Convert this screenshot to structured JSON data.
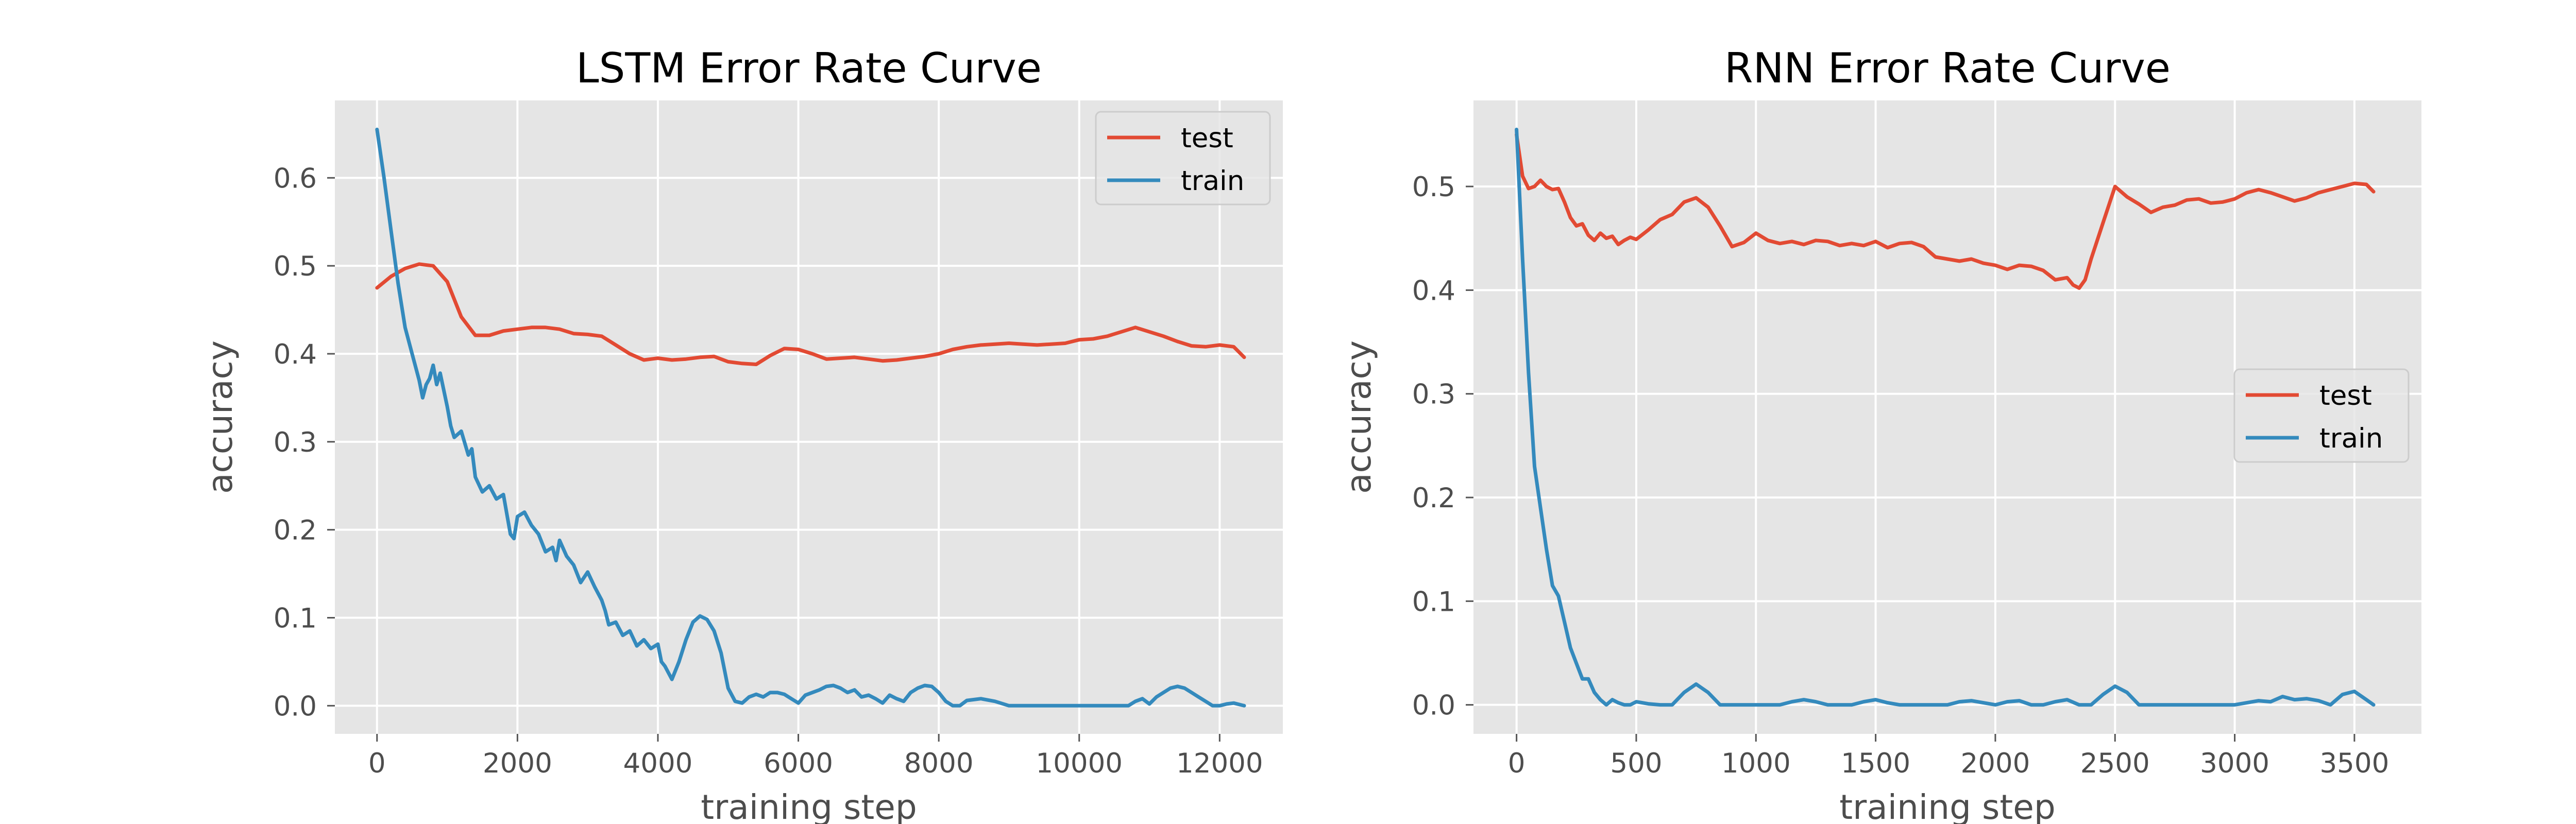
{
  "chart_data": [
    {
      "type": "line",
      "title": "LSTM Error Rate Curve",
      "xlabel": "training step",
      "ylabel": "accuracy",
      "xlim": [
        -600,
        12900
      ],
      "ylim": [
        -0.032,
        0.688
      ],
      "xticks": [
        0,
        2000,
        4000,
        6000,
        8000,
        10000,
        12000
      ],
      "yticks": [
        0.0,
        0.1,
        0.2,
        0.3,
        0.4,
        0.5,
        0.6
      ],
      "xtick_labels": [
        "0",
        "2000",
        "4000",
        "6000",
        "8000",
        "10000",
        "12000"
      ],
      "ytick_labels": [
        "0.0",
        "0.1",
        "0.2",
        "0.3",
        "0.4",
        "0.5",
        "0.6"
      ],
      "grid": true,
      "legend_position": "upper right",
      "series": [
        {
          "name": "test",
          "color": "#E24A33",
          "x": [
            0,
            200,
            400,
            600,
            800,
            1000,
            1200,
            1400,
            1600,
            1800,
            2000,
            2200,
            2400,
            2600,
            2800,
            3000,
            3200,
            3400,
            3600,
            3800,
            4000,
            4200,
            4400,
            4600,
            4800,
            5000,
            5200,
            5400,
            5600,
            5800,
            6000,
            6200,
            6400,
            6600,
            6800,
            7000,
            7200,
            7400,
            7600,
            7800,
            8000,
            8200,
            8400,
            8600,
            8800,
            9000,
            9200,
            9400,
            9600,
            9800,
            10000,
            10200,
            10400,
            10600,
            10800,
            11000,
            11200,
            11400,
            11600,
            11800,
            12000,
            12200,
            12350
          ],
          "values": [
            0.475,
            0.488,
            0.497,
            0.502,
            0.5,
            0.482,
            0.442,
            0.421,
            0.421,
            0.426,
            0.428,
            0.43,
            0.43,
            0.428,
            0.423,
            0.422,
            0.42,
            0.41,
            0.4,
            0.393,
            0.395,
            0.393,
            0.394,
            0.396,
            0.397,
            0.391,
            0.389,
            0.388,
            0.398,
            0.406,
            0.405,
            0.4,
            0.394,
            0.395,
            0.396,
            0.394,
            0.392,
            0.393,
            0.395,
            0.397,
            0.4,
            0.405,
            0.408,
            0.41,
            0.411,
            0.412,
            0.411,
            0.41,
            0.411,
            0.412,
            0.416,
            0.417,
            0.42,
            0.425,
            0.43,
            0.425,
            0.42,
            0.414,
            0.409,
            0.408,
            0.41,
            0.408,
            0.396
          ]
        },
        {
          "name": "train",
          "color": "#348ABD",
          "x": [
            0,
            100,
            200,
            300,
            400,
            500,
            600,
            650,
            700,
            750,
            800,
            850,
            900,
            1000,
            1050,
            1100,
            1200,
            1300,
            1350,
            1400,
            1500,
            1600,
            1700,
            1800,
            1900,
            1950,
            2000,
            2100,
            2200,
            2300,
            2400,
            2500,
            2550,
            2600,
            2700,
            2800,
            2900,
            3000,
            3100,
            3200,
            3250,
            3300,
            3400,
            3500,
            3600,
            3700,
            3800,
            3900,
            4000,
            4050,
            4100,
            4200,
            4300,
            4400,
            4500,
            4600,
            4700,
            4800,
            4900,
            5000,
            5100,
            5200,
            5300,
            5400,
            5500,
            5600,
            5700,
            5800,
            5900,
            6000,
            6100,
            6200,
            6300,
            6400,
            6500,
            6600,
            6700,
            6800,
            6900,
            7000,
            7100,
            7200,
            7300,
            7400,
            7500,
            7600,
            7700,
            7800,
            7900,
            8000,
            8100,
            8200,
            8300,
            8400,
            8600,
            8800,
            9000,
            9500,
            10000,
            10500,
            10700,
            10800,
            10900,
            11000,
            11100,
            11200,
            11300,
            11400,
            11500,
            11600,
            11700,
            11800,
            11900,
            12000,
            12100,
            12200,
            12350
          ],
          "values": [
            0.655,
            0.6,
            0.54,
            0.48,
            0.43,
            0.4,
            0.37,
            0.35,
            0.365,
            0.372,
            0.387,
            0.365,
            0.378,
            0.34,
            0.318,
            0.305,
            0.312,
            0.285,
            0.292,
            0.26,
            0.243,
            0.25,
            0.235,
            0.24,
            0.195,
            0.19,
            0.215,
            0.22,
            0.205,
            0.195,
            0.175,
            0.18,
            0.165,
            0.188,
            0.17,
            0.16,
            0.14,
            0.152,
            0.135,
            0.12,
            0.108,
            0.092,
            0.095,
            0.08,
            0.085,
            0.068,
            0.075,
            0.065,
            0.07,
            0.05,
            0.045,
            0.03,
            0.05,
            0.075,
            0.095,
            0.102,
            0.098,
            0.085,
            0.06,
            0.02,
            0.005,
            0.003,
            0.01,
            0.013,
            0.01,
            0.015,
            0.015,
            0.013,
            0.008,
            0.003,
            0.012,
            0.015,
            0.018,
            0.022,
            0.023,
            0.02,
            0.015,
            0.018,
            0.01,
            0.012,
            0.008,
            0.003,
            0.012,
            0.008,
            0.005,
            0.015,
            0.02,
            0.023,
            0.022,
            0.015,
            0.005,
            0.0,
            0.0,
            0.006,
            0.008,
            0.005,
            0.0,
            0.0,
            0.0,
            0.0,
            0.0,
            0.005,
            0.008,
            0.002,
            0.01,
            0.015,
            0.02,
            0.022,
            0.02,
            0.015,
            0.01,
            0.005,
            0.0,
            0.0,
            0.002,
            0.003,
            0.0
          ]
        }
      ]
    },
    {
      "type": "line",
      "title": "RNN Error Rate Curve",
      "xlabel": "training step",
      "ylabel": "accuracy",
      "xlim": [
        -180,
        3780
      ],
      "ylim": [
        -0.028,
        0.583
      ],
      "xticks": [
        0,
        500,
        1000,
        1500,
        2000,
        2500,
        3000,
        3500
      ],
      "yticks": [
        0.0,
        0.1,
        0.2,
        0.3,
        0.4,
        0.5
      ],
      "xtick_labels": [
        "0",
        "500",
        "1000",
        "1500",
        "2000",
        "2500",
        "3000",
        "3500"
      ],
      "ytick_labels": [
        "0.0",
        "0.1",
        "0.2",
        "0.3",
        "0.4",
        "0.5"
      ],
      "grid": true,
      "legend_position": "center right",
      "series": [
        {
          "name": "test",
          "color": "#E24A33",
          "x": [
            0,
            25,
            50,
            75,
            100,
            125,
            150,
            175,
            200,
            225,
            250,
            275,
            300,
            325,
            350,
            375,
            400,
            425,
            450,
            475,
            500,
            550,
            600,
            650,
            700,
            750,
            800,
            850,
            900,
            950,
            1000,
            1050,
            1100,
            1150,
            1200,
            1250,
            1300,
            1350,
            1400,
            1450,
            1500,
            1550,
            1600,
            1650,
            1700,
            1750,
            1800,
            1850,
            1900,
            1950,
            2000,
            2050,
            2100,
            2150,
            2200,
            2250,
            2300,
            2325,
            2350,
            2375,
            2400,
            2450,
            2500,
            2550,
            2600,
            2650,
            2700,
            2750,
            2800,
            2850,
            2900,
            2950,
            3000,
            3050,
            3100,
            3150,
            3200,
            3250,
            3300,
            3350,
            3400,
            3450,
            3500,
            3550,
            3580
          ],
          "values": [
            0.55,
            0.51,
            0.498,
            0.5,
            0.506,
            0.5,
            0.497,
            0.498,
            0.485,
            0.47,
            0.462,
            0.464,
            0.453,
            0.448,
            0.455,
            0.45,
            0.452,
            0.444,
            0.448,
            0.451,
            0.449,
            0.458,
            0.468,
            0.473,
            0.485,
            0.489,
            0.48,
            0.462,
            0.442,
            0.446,
            0.455,
            0.448,
            0.445,
            0.447,
            0.444,
            0.448,
            0.447,
            0.443,
            0.445,
            0.443,
            0.447,
            0.441,
            0.445,
            0.446,
            0.442,
            0.432,
            0.43,
            0.428,
            0.43,
            0.426,
            0.424,
            0.42,
            0.424,
            0.423,
            0.419,
            0.41,
            0.412,
            0.405,
            0.402,
            0.41,
            0.43,
            0.465,
            0.5,
            0.49,
            0.483,
            0.475,
            0.48,
            0.482,
            0.487,
            0.488,
            0.484,
            0.485,
            0.488,
            0.494,
            0.497,
            0.494,
            0.49,
            0.486,
            0.489,
            0.494,
            0.497,
            0.5,
            0.503,
            0.502,
            0.495
          ]
        },
        {
          "name": "train",
          "color": "#348ABD",
          "x": [
            0,
            25,
            50,
            75,
            100,
            125,
            150,
            175,
            200,
            225,
            250,
            275,
            300,
            325,
            350,
            375,
            400,
            425,
            450,
            475,
            500,
            550,
            600,
            650,
            700,
            750,
            800,
            850,
            900,
            950,
            1000,
            1100,
            1150,
            1200,
            1250,
            1300,
            1400,
            1450,
            1500,
            1550,
            1600,
            1700,
            1800,
            1850,
            1900,
            1950,
            2000,
            2050,
            2100,
            2150,
            2200,
            2250,
            2300,
            2350,
            2400,
            2450,
            2500,
            2550,
            2600,
            2650,
            2700,
            2800,
            2900,
            3000,
            3050,
            3100,
            3150,
            3200,
            3250,
            3300,
            3350,
            3400,
            3450,
            3500,
            3550,
            3580
          ],
          "values": [
            0.555,
            0.43,
            0.32,
            0.23,
            0.19,
            0.15,
            0.115,
            0.105,
            0.08,
            0.055,
            0.04,
            0.025,
            0.025,
            0.012,
            0.005,
            0.0,
            0.005,
            0.002,
            0.0,
            0.0,
            0.003,
            0.001,
            0.0,
            0.0,
            0.012,
            0.02,
            0.012,
            0.0,
            0.0,
            0.0,
            0.0,
            0.0,
            0.003,
            0.005,
            0.003,
            0.0,
            0.0,
            0.003,
            0.005,
            0.002,
            0.0,
            0.0,
            0.0,
            0.003,
            0.004,
            0.002,
            0.0,
            0.003,
            0.004,
            0.0,
            0.0,
            0.003,
            0.005,
            0.0,
            0.0,
            0.01,
            0.018,
            0.012,
            0.0,
            0.0,
            0.0,
            0.0,
            0.0,
            0.0,
            0.002,
            0.004,
            0.003,
            0.008,
            0.005,
            0.006,
            0.004,
            0.0,
            0.01,
            0.013,
            0.005,
            0.0
          ]
        }
      ]
    }
  ]
}
